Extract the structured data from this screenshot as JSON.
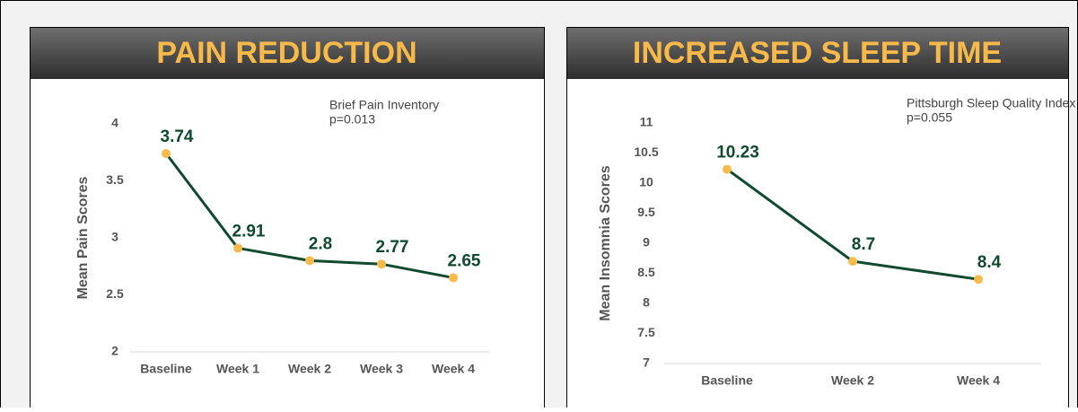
{
  "chart_data": [
    {
      "type": "line",
      "title": "PAIN REDUCTION",
      "y_label": "Mean Pain Scores",
      "annotations": [
        "Brief Pain Inventory",
        "p=0.013"
      ],
      "categories": [
        "Baseline",
        "Week 1",
        "Week 2",
        "Week 3",
        "Week 4"
      ],
      "series": [
        {
          "color": "#0f4a2f",
          "marker_color": "#f6bb4c",
          "values": [
            3.74,
            2.91,
            2.8,
            2.77,
            2.65
          ]
        }
      ],
      "ylim": [
        2,
        4
      ],
      "yticks": [
        2,
        2.5,
        3,
        3.5,
        4
      ]
    },
    {
      "type": "line",
      "title": "INCREASED SLEEP TIME",
      "y_label": "Mean Insomnia Scores",
      "annotations": [
        "Pittsburgh Sleep Quality Index",
        "p=0.055"
      ],
      "categories": [
        "Baseline",
        "Week 2",
        "Week 4"
      ],
      "series": [
        {
          "color": "#0f4a2f",
          "marker_color": "#f6bb4c",
          "values": [
            10.23,
            8.7,
            8.4
          ]
        }
      ],
      "ylim": [
        7,
        11
      ],
      "yticks": [
        7,
        7.5,
        8,
        8.5,
        9,
        9.5,
        10,
        10.5,
        11
      ]
    }
  ]
}
